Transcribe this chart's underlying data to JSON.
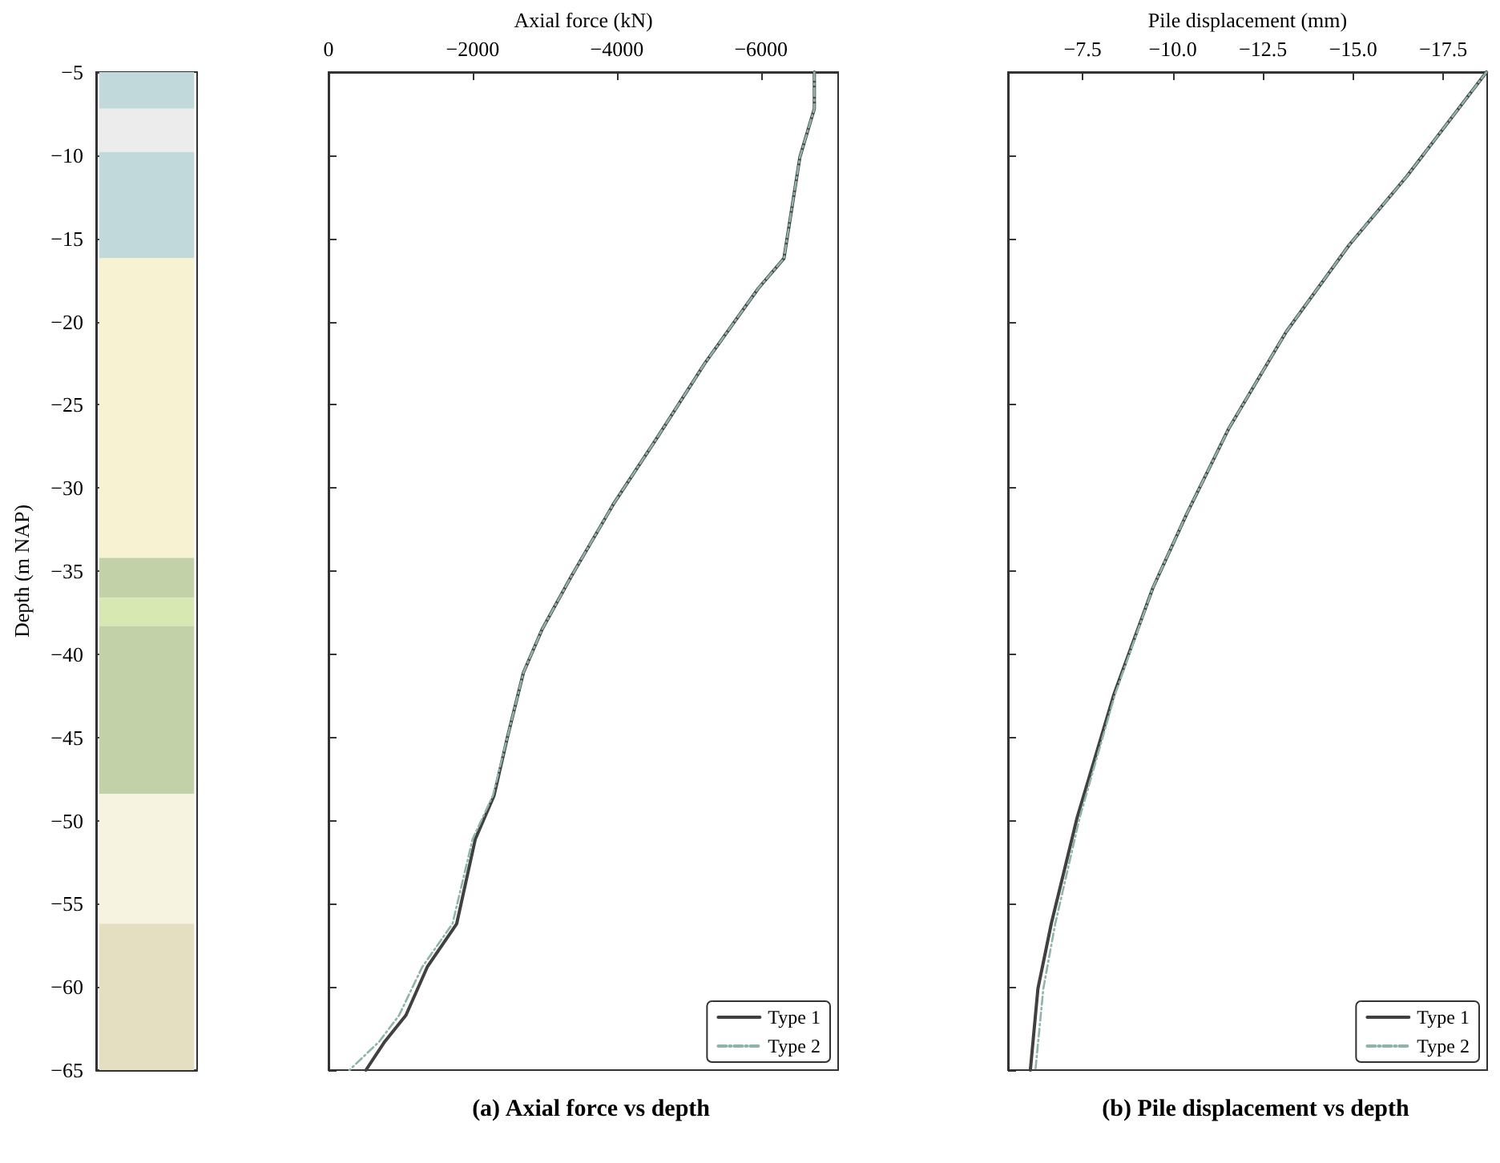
{
  "chart_data": [
    {
      "type": "bar",
      "categories": [
        null
      ],
      "ylabel": "Depth (m NAP)",
      "ylim": [
        -65,
        -5
      ],
      "yticks": [
        {
          "value": -5,
          "label": "−5"
        },
        {
          "value": -10,
          "label": "−10"
        },
        {
          "value": -15,
          "label": "−15"
        },
        {
          "value": -20,
          "label": "−20"
        },
        {
          "value": -25,
          "label": "−25"
        },
        {
          "value": -30,
          "label": "−30"
        },
        {
          "value": -35,
          "label": "−35"
        },
        {
          "value": -40,
          "label": "−40"
        },
        {
          "value": -45,
          "label": "−45"
        },
        {
          "value": -50,
          "label": "−50"
        },
        {
          "value": -55,
          "label": "−55"
        },
        {
          "value": -60,
          "label": "−60"
        },
        {
          "value": -65,
          "label": "−65"
        }
      ],
      "tick_labels": "y",
      "grid": false,
      "legend": false,
      "series": [
        {
          "color": "#c1d9da",
          "base": [
            -5
          ],
          "values": [
            -2.2
          ]
        },
        {
          "color": "#ececec",
          "base": [
            -7.2
          ],
          "values": [
            -2.6
          ]
        },
        {
          "color": "#c1d9da",
          "base": [
            -9.8
          ],
          "values": [
            -6.4
          ]
        },
        {
          "color": "#f7f3d2",
          "base": [
            -16.2
          ],
          "values": [
            -18
          ]
        },
        {
          "color": "#c3d1a8",
          "base": [
            -34.2
          ],
          "values": [
            -2.4
          ]
        },
        {
          "color": "#d8e8b2",
          "base": [
            -36.6
          ],
          "values": [
            -1.7
          ]
        },
        {
          "color": "#c3d1a8",
          "base": [
            -38.3
          ],
          "values": [
            -10.1
          ]
        },
        {
          "color": "#f6f4e0",
          "base": [
            -48.4
          ],
          "values": [
            -7.8
          ]
        },
        {
          "color": "#e4dfc0",
          "base": [
            -56.2
          ],
          "values": [
            -8.8
          ]
        }
      ]
    },
    {
      "type": "line",
      "title": "(a) Axial force vs depth",
      "xlabel": "Axial force (kN)",
      "xlim": [
        0,
        -7070
      ],
      "xticks": [
        {
          "value": 0,
          "label": "0"
        },
        {
          "value": -2000,
          "label": "−2000"
        },
        {
          "value": -4000,
          "label": "−4000"
        },
        {
          "value": -6000,
          "label": "−6000"
        }
      ],
      "ylim": [
        -65,
        -5
      ],
      "yticks": [
        {
          "value": -5,
          "label": null
        },
        {
          "value": -10,
          "label": null
        },
        {
          "value": -15,
          "label": null
        },
        {
          "value": -20,
          "label": null
        },
        {
          "value": -25,
          "label": null
        },
        {
          "value": -30,
          "label": null
        },
        {
          "value": -35,
          "label": null
        },
        {
          "value": -40,
          "label": null
        },
        {
          "value": -45,
          "label": null
        },
        {
          "value": -50,
          "label": null
        },
        {
          "value": -55,
          "label": null
        },
        {
          "value": -60,
          "label": null
        },
        {
          "value": -65,
          "label": null
        }
      ],
      "tick_labels": "x",
      "grid": false,
      "legend": "bottom right",
      "marker": "none",
      "series": [
        {
          "name": "Type 1",
          "color": "#404040",
          "line_style": "solid",
          "x": [
            -6740,
            -6740,
            -6540,
            -6318,
            -5963,
            -5222,
            -4556,
            -3963,
            -3370,
            -2963,
            -2704,
            -2481,
            -2296,
            -2037,
            -1778,
            -1370,
            -1074,
            -778,
            -519
          ],
          "values": [
            -5,
            -7.2,
            -10.1,
            -16.2,
            -18,
            -22.5,
            -27,
            -30.9,
            -35.3,
            -38.5,
            -41.1,
            -45,
            -48.5,
            -51.1,
            -56.2,
            -58.8,
            -61.7,
            -63.3,
            -65
          ]
        },
        {
          "name": "Type 2",
          "color": "#8fb3ad",
          "line_style": "dashed",
          "x": [
            -6740,
            -6740,
            -6540,
            -6318,
            -5963,
            -5222,
            -4556,
            -3963,
            -3370,
            -2963,
            -2704,
            -2481,
            -2280,
            -2000,
            -1720,
            -1300,
            -980,
            -700,
            -290
          ],
          "values": [
            -5,
            -7.2,
            -10.1,
            -16.2,
            -18,
            -22.5,
            -27,
            -30.9,
            -35.3,
            -38.5,
            -41.1,
            -45,
            -48.5,
            -51.1,
            -56.2,
            -58.8,
            -61.7,
            -63.3,
            -65
          ]
        }
      ]
    },
    {
      "type": "line",
      "title": "(b) Pile displacement vs depth",
      "xlabel": "Pile displacement (mm)",
      "xlim": [
        -5.43,
        -18.72
      ],
      "xticks": [
        {
          "value": -7.5,
          "label": "−7.5"
        },
        {
          "value": -10,
          "label": "−10.0"
        },
        {
          "value": -12.5,
          "label": "−12.5"
        },
        {
          "value": -15,
          "label": "−15.0"
        },
        {
          "value": -17.5,
          "label": "−17.5"
        }
      ],
      "ylim": [
        -65,
        -5
      ],
      "yticks": [
        {
          "value": -5,
          "label": null
        },
        {
          "value": -10,
          "label": null
        },
        {
          "value": -15,
          "label": null
        },
        {
          "value": -20,
          "label": null
        },
        {
          "value": -25,
          "label": null
        },
        {
          "value": -30,
          "label": null
        },
        {
          "value": -35,
          "label": null
        },
        {
          "value": -40,
          "label": null
        },
        {
          "value": -45,
          "label": null
        },
        {
          "value": -50,
          "label": null
        },
        {
          "value": -55,
          "label": null
        },
        {
          "value": -60,
          "label": null
        },
        {
          "value": -65,
          "label": null
        }
      ],
      "tick_labels": "x",
      "grid": false,
      "legend": "bottom right",
      "marker": "none",
      "series": [
        {
          "name": "Type 1",
          "color": "#404040",
          "line_style": "solid",
          "x": [
            -18.7,
            -16.48,
            -14.89,
            -13.15,
            -11.56,
            -10.4,
            -9.45,
            -8.37,
            -7.35,
            -6.63,
            -6.26,
            -6.05
          ],
          "values": [
            -5,
            -11.3,
            -15.4,
            -20.6,
            -26.4,
            -31.5,
            -36,
            -42.4,
            -49.8,
            -56.2,
            -60.1,
            -65
          ]
        },
        {
          "name": "Type 2",
          "color": "#8fb3ad",
          "line_style": "dashed",
          "x": [
            -18.7,
            -16.48,
            -14.89,
            -13.15,
            -11.56,
            -10.4,
            -9.45,
            -8.4,
            -7.42,
            -6.74,
            -6.41,
            -6.19
          ],
          "values": [
            -5,
            -11.3,
            -15.4,
            -20.6,
            -26.4,
            -31.5,
            -36,
            -42.4,
            -49.8,
            -56.2,
            -60.1,
            -65
          ]
        }
      ]
    }
  ]
}
